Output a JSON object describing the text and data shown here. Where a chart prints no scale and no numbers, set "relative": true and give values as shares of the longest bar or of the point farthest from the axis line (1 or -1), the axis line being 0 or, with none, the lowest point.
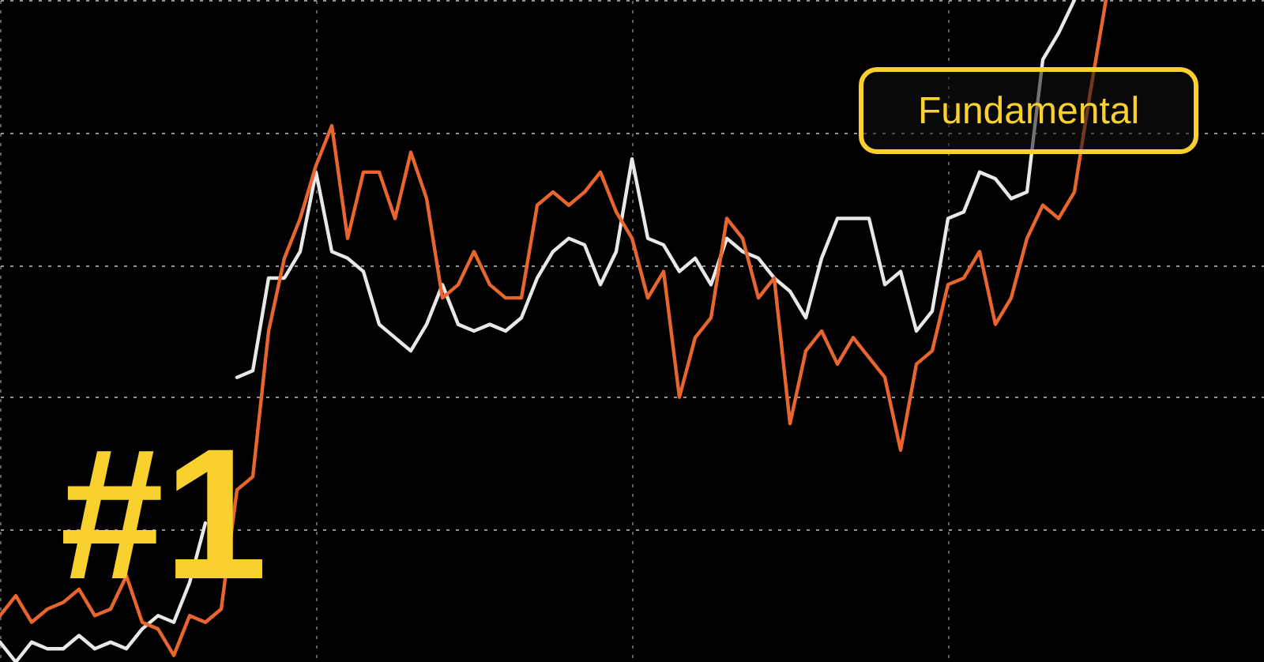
{
  "chart_data": {
    "type": "line",
    "relative": true,
    "grid": true,
    "categories": [
      null,
      null,
      null,
      null,
      null,
      null,
      null,
      null,
      null,
      null,
      null,
      null,
      null,
      null,
      null,
      null,
      null,
      null,
      null,
      null,
      null,
      null,
      null,
      null,
      null,
      null,
      null,
      null,
      null,
      null,
      null,
      null,
      null,
      null,
      null,
      null,
      null,
      null,
      null,
      null,
      null,
      null,
      null,
      null,
      null,
      null,
      null,
      null,
      null,
      null,
      null,
      null,
      null,
      null,
      null,
      null,
      null,
      null,
      null,
      null,
      null,
      null,
      null,
      null,
      null,
      null,
      null,
      null,
      null,
      null,
      null,
      null,
      null,
      null,
      null,
      null,
      null,
      null,
      null,
      null,
      null
    ],
    "series": [
      {
        "color": "#e8e8e8",
        "values": [
          0.03,
          0,
          0.03,
          0.02,
          0.02,
          0.04,
          0.02,
          0.03,
          0.02,
          0.05,
          0.07,
          0.06,
          0.12,
          0.21,
          null,
          0.43,
          0.44,
          0.58,
          0.58,
          0.62,
          0.74,
          0.62,
          0.61,
          0.59,
          0.51,
          0.49,
          0.47,
          0.51,
          0.57,
          0.51,
          0.5,
          0.51,
          0.5,
          0.52,
          0.58,
          0.62,
          0.64,
          0.63,
          0.57,
          0.62,
          0.76,
          0.64,
          0.63,
          0.59,
          0.61,
          0.57,
          0.64,
          0.62,
          0.61,
          0.58,
          0.56,
          0.52,
          0.61,
          0.67,
          0.67,
          0.67,
          0.57,
          0.59,
          0.5,
          0.53,
          0.67,
          0.68,
          0.74,
          0.73,
          0.7,
          0.71,
          0.91,
          0.95,
          1,
          null,
          null,
          null,
          null,
          null,
          null,
          null,
          null,
          null,
          null,
          null,
          null
        ]
      },
      {
        "color": "#e8662e",
        "values": [
          0.07,
          0.1,
          0.06,
          0.08,
          0.09,
          0.11,
          0.07,
          0.08,
          0.13,
          0.06,
          0.05,
          0.01,
          0.07,
          0.06,
          0.08,
          0.26,
          0.28,
          0.5,
          0.61,
          0.67,
          0.75,
          0.81,
          0.64,
          0.74,
          0.74,
          0.67,
          0.77,
          0.7,
          0.55,
          0.57,
          0.62,
          0.57,
          0.55,
          0.55,
          0.69,
          0.71,
          0.69,
          0.71,
          0.74,
          0.68,
          0.64,
          0.55,
          0.59,
          0.4,
          0.49,
          0.52,
          0.67,
          0.64,
          0.55,
          0.58,
          0.36,
          0.47,
          0.5,
          0.45,
          0.49,
          0.46,
          0.43,
          0.32,
          0.45,
          0.47,
          0.57,
          0.58,
          0.62,
          0.51,
          0.55,
          0.64,
          0.69,
          0.67,
          0.71,
          0.86,
          1,
          null,
          null,
          null,
          null,
          null,
          null,
          null,
          null,
          null,
          null
        ]
      }
    ],
    "annotations": [
      "#1",
      "Fundamental"
    ]
  }
}
